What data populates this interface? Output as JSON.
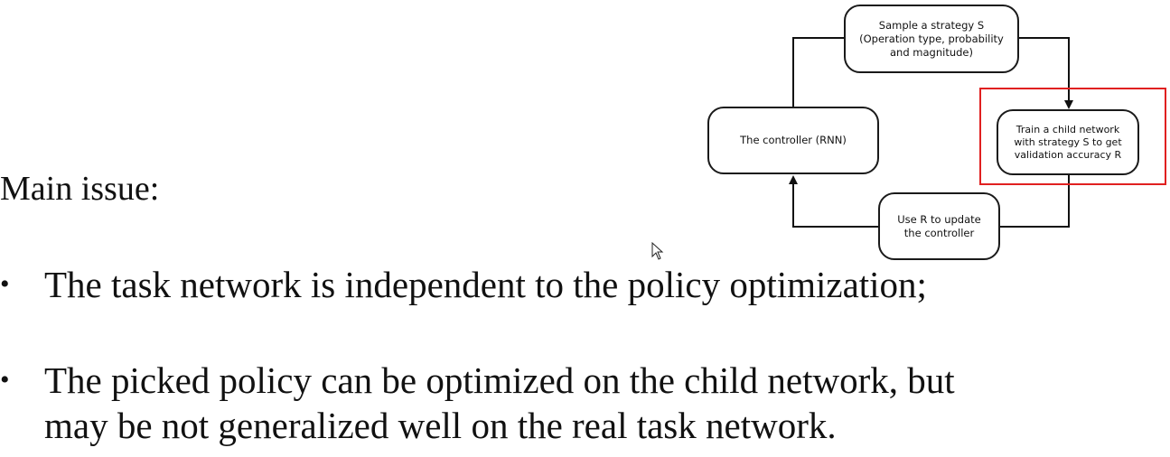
{
  "diagram": {
    "nodes": {
      "sample": "Sample a strategy S\n(Operation type, probability\nand magnitude)",
      "controller": "The controller (RNN)",
      "train": "Train a child network\nwith strategy S to get\nvalidation accuracy R",
      "update": "Use R to update\nthe controller"
    },
    "highlight_color": "#e02020"
  },
  "slide": {
    "heading": "Main issue:",
    "bullet_symbol": "•",
    "bullets": [
      "The task network is independent to the policy optimization;",
      "The picked policy can be optimized on the child network, but\nmay be not generalized well on the real task network."
    ]
  },
  "icons": {
    "cursor": "mouse-pointer-icon"
  }
}
